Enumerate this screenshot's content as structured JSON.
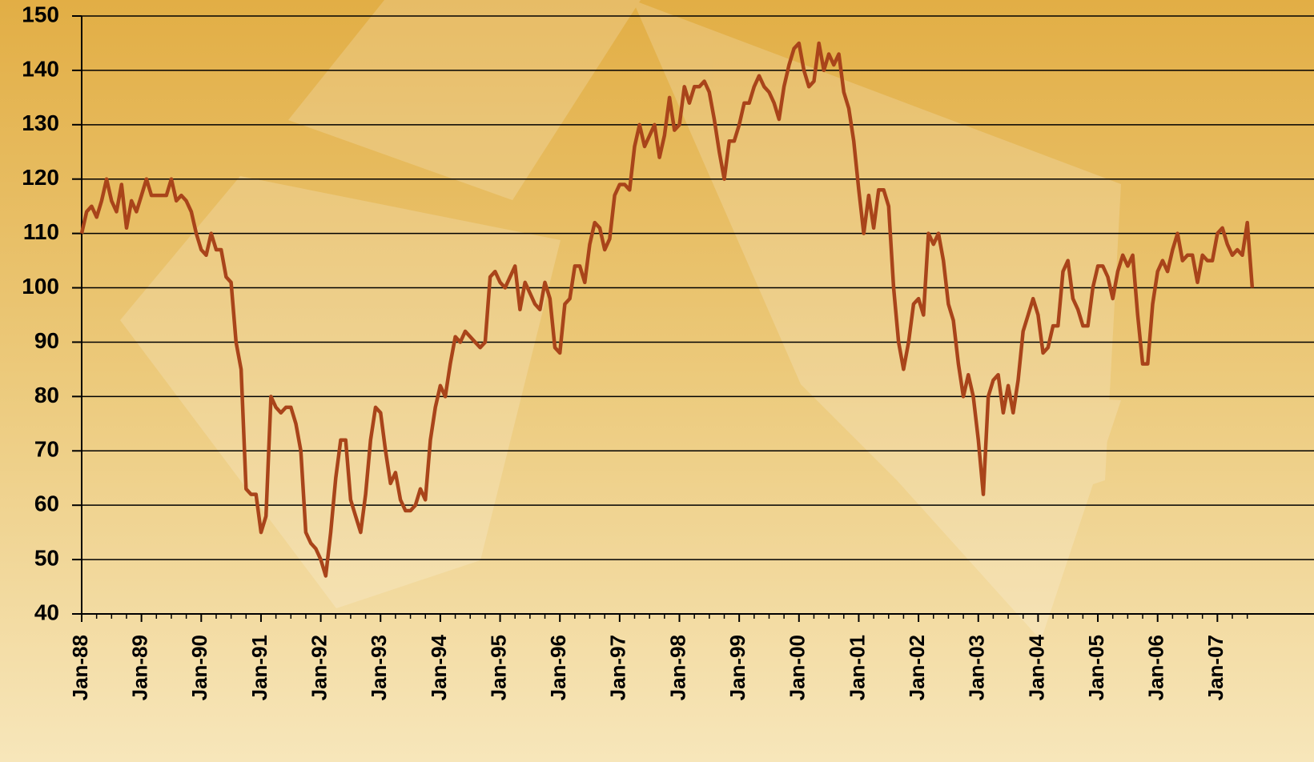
{
  "chart_data": {
    "type": "line",
    "categories": [
      "Jan-88",
      null,
      null,
      null,
      null,
      null,
      null,
      null,
      null,
      null,
      null,
      null,
      "Jan-89",
      null,
      null,
      null,
      null,
      null,
      null,
      null,
      null,
      null,
      null,
      null,
      "Jan-90",
      null,
      null,
      null,
      null,
      null,
      null,
      null,
      null,
      null,
      null,
      null,
      "Jan-91",
      null,
      null,
      null,
      null,
      null,
      null,
      null,
      null,
      null,
      null,
      null,
      "Jan-92",
      null,
      null,
      null,
      null,
      null,
      null,
      null,
      null,
      null,
      null,
      null,
      "Jan-93",
      null,
      null,
      null,
      null,
      null,
      null,
      null,
      null,
      null,
      null,
      null,
      "Jan-94",
      null,
      null,
      null,
      null,
      null,
      null,
      null,
      null,
      null,
      null,
      null,
      "Jan-95",
      null,
      null,
      null,
      null,
      null,
      null,
      null,
      null,
      null,
      null,
      null,
      "Jan-96",
      null,
      null,
      null,
      null,
      null,
      null,
      null,
      null,
      null,
      null,
      null,
      "Jan-97",
      null,
      null,
      null,
      null,
      null,
      null,
      null,
      null,
      null,
      null,
      null,
      "Jan-98",
      null,
      null,
      null,
      null,
      null,
      null,
      null,
      null,
      null,
      null,
      null,
      "Jan-99",
      null,
      null,
      null,
      null,
      null,
      null,
      null,
      null,
      null,
      null,
      null,
      "Jan-00",
      null,
      null,
      null,
      null,
      null,
      null,
      null,
      null,
      null,
      null,
      null,
      "Jan-01",
      null,
      null,
      null,
      null,
      null,
      null,
      null,
      null,
      null,
      null,
      null,
      "Jan-02",
      null,
      null,
      null,
      null,
      null,
      null,
      null,
      null,
      null,
      null,
      null,
      "Jan-03",
      null,
      null,
      null,
      null,
      null,
      null,
      null,
      null,
      null,
      null,
      null,
      "Jan-04",
      null,
      null,
      null,
      null,
      null,
      null,
      null,
      null,
      null,
      null,
      null,
      "Jan-05",
      null,
      null,
      null,
      null,
      null,
      null,
      null,
      null,
      null,
      null,
      null,
      "Jan-06",
      null,
      null,
      null,
      null,
      null,
      null,
      null,
      null,
      null,
      null,
      null,
      "Jan-07",
      null,
      null,
      null,
      null,
      null,
      null,
      null
    ],
    "series": [
      {
        "color": "#a9441a",
        "values": [
          110,
          114,
          115,
          113,
          116,
          120,
          116,
          114,
          119,
          111,
          116,
          114,
          117,
          120,
          117,
          117,
          117,
          117,
          120,
          116,
          117,
          116,
          114,
          110,
          107,
          106,
          110,
          107,
          107,
          102,
          101,
          90,
          85,
          63,
          62,
          62,
          55,
          58,
          80,
          78,
          77,
          78,
          78,
          75,
          70,
          55,
          53,
          52,
          50,
          47,
          55,
          65,
          72,
          72,
          61,
          58,
          55,
          62,
          72,
          78,
          77,
          70,
          64,
          66,
          61,
          59,
          59,
          60,
          63,
          61,
          72,
          78,
          82,
          80,
          86,
          91,
          90,
          92,
          91,
          90,
          89,
          90,
          102,
          103,
          101,
          100,
          102,
          104,
          96,
          101,
          99,
          97,
          96,
          101,
          98,
          89,
          88,
          97,
          98,
          104,
          104,
          101,
          108,
          112,
          111,
          107,
          109,
          117,
          119,
          119,
          118,
          126,
          130,
          126,
          128,
          130,
          124,
          128,
          135,
          129,
          130,
          137,
          134,
          137,
          137,
          138,
          136,
          131,
          125,
          120,
          127,
          127,
          130,
          134,
          134,
          137,
          139,
          137,
          136,
          134,
          131,
          137,
          141,
          144,
          145,
          140,
          137,
          138,
          145,
          140,
          143,
          141,
          143,
          136,
          133,
          127,
          118,
          110,
          117,
          111,
          118,
          118,
          115,
          100,
          90,
          85,
          90,
          97,
          98,
          95,
          110,
          108,
          110,
          105,
          97,
          94,
          86,
          80,
          84,
          80,
          72,
          62,
          80,
          83,
          84,
          77,
          82,
          77,
          83,
          92,
          95,
          98,
          95,
          88,
          89,
          93,
          93,
          103,
          105,
          98,
          96,
          93,
          93,
          100,
          104,
          104,
          102,
          98,
          103,
          106,
          104,
          106,
          95,
          86,
          86,
          97,
          103,
          105,
          103,
          107,
          110,
          105,
          106,
          106,
          101,
          106,
          105,
          105,
          110,
          111,
          108,
          106,
          107,
          106,
          112,
          100
        ]
      }
    ],
    "ylim": [
      40,
      150
    ],
    "yticks": [
      40,
      50,
      60,
      70,
      80,
      90,
      100,
      110,
      120,
      130,
      140,
      150
    ],
    "grid": true
  }
}
